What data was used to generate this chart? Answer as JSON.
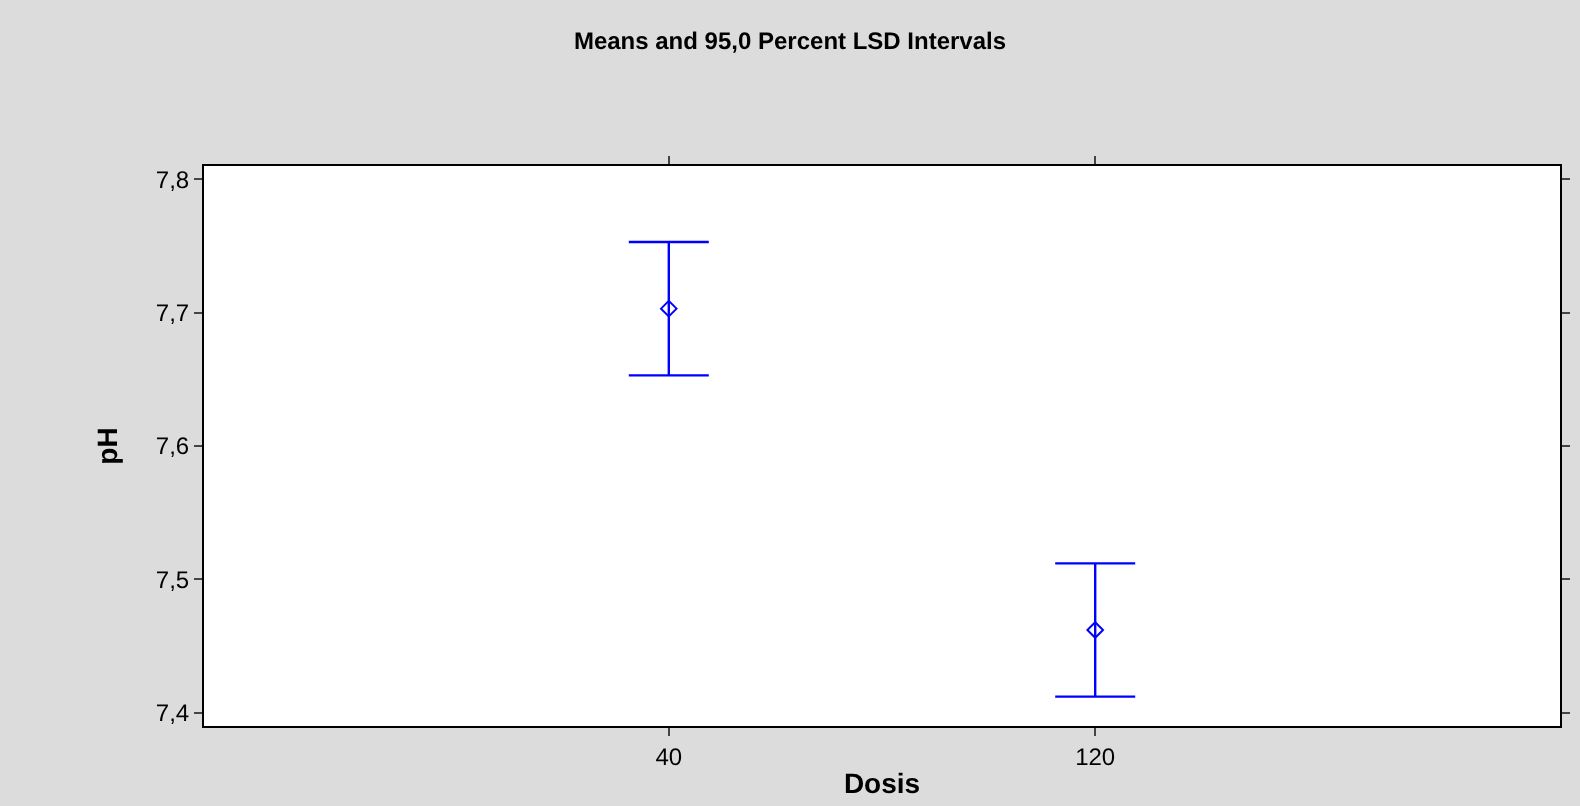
{
  "chart_data": {
    "type": "scatter",
    "title": "Means and 95,0 Percent LSD Intervals",
    "xlabel": "Dosis",
    "ylabel": "pH",
    "categories": [
      "40",
      "120"
    ],
    "series": [
      {
        "color": "#0000ff",
        "values": [
          7.703,
          7.462
        ],
        "errors": [
          0.05,
          0.05
        ]
      }
    ],
    "marker": "diamond",
    "ylim": [
      7.39,
      7.81
    ],
    "yticks": [
      {
        "value": 7.4,
        "label": "7,4"
      },
      {
        "value": 7.5,
        "label": "7,5"
      },
      {
        "value": 7.6,
        "label": "7,6"
      },
      {
        "value": 7.7,
        "label": "7,7"
      },
      {
        "value": 7.8,
        "label": "7,8"
      }
    ],
    "tick_labels": "xy"
  }
}
